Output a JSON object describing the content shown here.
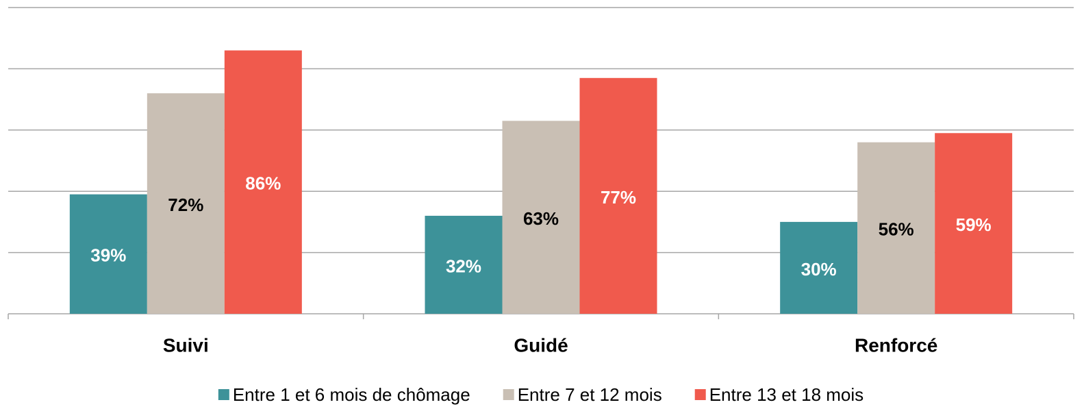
{
  "chart_data": {
    "type": "bar",
    "categories": [
      "Suivi",
      "Guidé",
      "Renforcé"
    ],
    "series": [
      {
        "name": "Entre 1 et 6 mois de chômage",
        "color": "#3d9299",
        "label_color": "#ffffff",
        "values": [
          39,
          32,
          30
        ],
        "value_labels": [
          "39%",
          "32%",
          "30%"
        ]
      },
      {
        "name": "Entre 7 et 12 mois",
        "color": "#c9bfb4",
        "label_color": "#000000",
        "values": [
          72,
          63,
          56
        ],
        "value_labels": [
          "72%",
          "63%",
          "56%"
        ]
      },
      {
        "name": "Entre 13 et 18 mois",
        "color": "#f05a4d",
        "label_color": "#ffffff",
        "values": [
          86,
          77,
          59
        ],
        "value_labels": [
          "86%",
          "77%",
          "59%"
        ]
      }
    ],
    "ylim": [
      0,
      100
    ],
    "yticks": [
      0,
      20,
      40,
      60,
      80,
      100
    ],
    "grid": true,
    "legend": "bottom"
  }
}
